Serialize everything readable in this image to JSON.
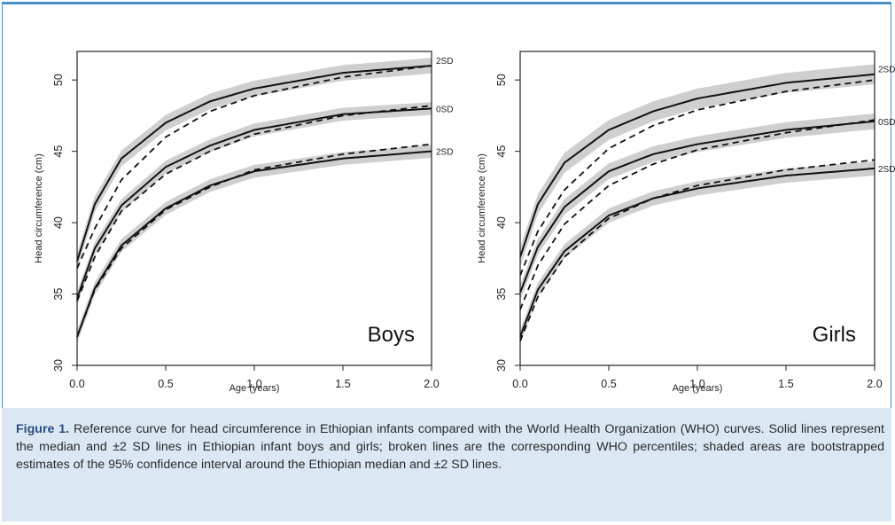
{
  "figure": {
    "label": "Figure 1.",
    "caption": " Reference curve for head circumference in Ethiopian infants compared with the World Health Organization (WHO) curves. Solid lines represent the median and ±2 SD lines in Ethiopian infant boys and girls; broken lines are the corresponding WHO percentiles; shaded areas are bootstrapped estimates of the 95% confidence interval around the Ethiopian median and ±2 SD lines."
  },
  "colors": {
    "frame": "#4a8fc8",
    "caption_bg": "#dbe8f4",
    "band": "#cfcfcf",
    "line": "#111111"
  },
  "chart_data": [
    {
      "type": "line",
      "panel_label": "Boys",
      "xlabel": "Age (years)",
      "ylabel": "Head circumference (cm)",
      "xlim": [
        0,
        2
      ],
      "ylim": [
        30,
        52
      ],
      "xticks": [
        "0.0",
        "0.5",
        "1.0",
        "1.5",
        "2.0"
      ],
      "yticks": [
        "30",
        "35",
        "40",
        "45",
        "50"
      ],
      "curve_labels": [
        "2SD",
        "0SD",
        "2SD"
      ],
      "x": [
        0,
        0.1,
        0.25,
        0.5,
        0.75,
        1.0,
        1.5,
        2.0
      ],
      "series": [
        {
          "style": "solid",
          "y": [
            37.3,
            41.3,
            44.5,
            47.0,
            48.5,
            49.4,
            50.5,
            51.0
          ],
          "band": 0.55
        },
        {
          "style": "dashed",
          "y": [
            36.8,
            39.6,
            43.0,
            46.0,
            47.8,
            48.9,
            50.2,
            51.0
          ]
        },
        {
          "style": "solid",
          "y": [
            34.7,
            38.2,
            41.2,
            43.9,
            45.4,
            46.5,
            47.6,
            48.0
          ],
          "band": 0.45
        },
        {
          "style": "dashed",
          "y": [
            34.5,
            37.6,
            40.8,
            43.4,
            45.0,
            46.2,
            47.5,
            48.2
          ]
        },
        {
          "style": "solid",
          "y": [
            32.0,
            35.4,
            38.4,
            41.0,
            42.6,
            43.6,
            44.5,
            45.0
          ],
          "band": 0.45
        },
        {
          "style": "dashed",
          "y": [
            32.0,
            35.3,
            38.2,
            40.9,
            42.5,
            43.7,
            44.8,
            45.5
          ]
        }
      ]
    },
    {
      "type": "line",
      "panel_label": "Girls",
      "xlabel": "Age (years)",
      "ylabel": "Head circumference (cm)",
      "xlim": [
        0,
        2
      ],
      "ylim": [
        30,
        52
      ],
      "xticks": [
        "0.0",
        "0.5",
        "1.0",
        "1.5",
        "2.0"
      ],
      "yticks": [
        "30",
        "35",
        "40",
        "45",
        "50"
      ],
      "curve_labels": [
        "2SD",
        "0SD",
        "2SD"
      ],
      "x": [
        0,
        0.1,
        0.25,
        0.5,
        0.75,
        1.0,
        1.5,
        2.0
      ],
      "series": [
        {
          "style": "solid",
          "y": [
            37.6,
            41.3,
            44.2,
            46.5,
            47.8,
            48.7,
            49.8,
            50.4
          ],
          "band": 0.7
        },
        {
          "style": "dashed",
          "y": [
            36.3,
            39.4,
            42.3,
            45.2,
            46.8,
            47.9,
            49.2,
            50.0
          ]
        },
        {
          "style": "solid",
          "y": [
            35.1,
            38.3,
            41.1,
            43.6,
            44.8,
            45.5,
            46.5,
            47.1
          ],
          "band": 0.55
        },
        {
          "style": "dashed",
          "y": [
            33.9,
            37.0,
            39.9,
            42.6,
            44.1,
            45.1,
            46.3,
            47.2
          ]
        },
        {
          "style": "solid",
          "y": [
            32.0,
            35.3,
            38.0,
            40.5,
            41.7,
            42.4,
            43.3,
            43.8
          ],
          "band": 0.5
        },
        {
          "style": "dashed",
          "y": [
            31.7,
            34.8,
            37.6,
            40.3,
            41.7,
            42.6,
            43.7,
            44.4
          ]
        }
      ]
    }
  ]
}
